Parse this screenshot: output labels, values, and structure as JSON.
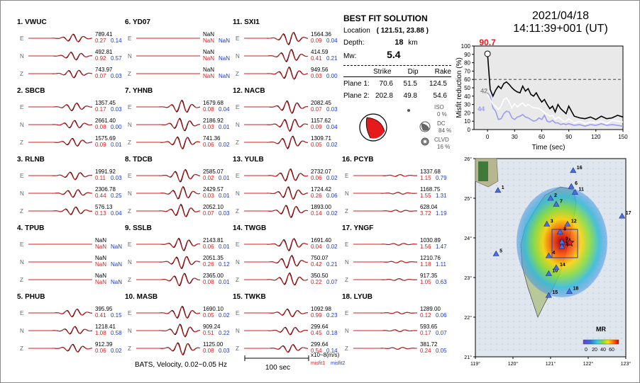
{
  "colors": {
    "data": "#000000",
    "syn": "#d62020",
    "misfit2": "#1a3acb",
    "vr_curve": "#000000",
    "vr_iso": "#ffffff",
    "vr_dc": "#9a9cf2"
  },
  "stations": [
    {
      "name": "1. VWUC",
      "comps": [
        {
          "label": "E",
          "amp": "789.41",
          "m1": "0.27",
          "m2": "0.14"
        },
        {
          "label": "N",
          "amp": "492.81",
          "m1": "0.92",
          "m2": "0.57"
        },
        {
          "label": "Z",
          "amp": "743.97",
          "m1": "0.07",
          "m2": "0.03"
        }
      ]
    },
    {
      "name": "2. SBCB",
      "comps": [
        {
          "label": "E",
          "amp": "1357.45",
          "m1": "0.17",
          "m2": "0.03"
        },
        {
          "label": "N",
          "amp": "2661.40",
          "m1": "0.08",
          "m2": "0.00"
        },
        {
          "label": "Z",
          "amp": "1575.69",
          "m1": "0.09",
          "m2": "0.01"
        }
      ]
    },
    {
      "name": "3. RLNB",
      "comps": [
        {
          "label": "E",
          "amp": "1991.92",
          "m1": "0.11",
          "m2": "0.03"
        },
        {
          "label": "N",
          "amp": "2306.78",
          "m1": "0.44",
          "m2": "0.25"
        },
        {
          "label": "Z",
          "amp": "576.13",
          "m1": "0.13",
          "m2": "0.04"
        }
      ]
    },
    {
      "name": "4. TPUB",
      "comps": [
        {
          "label": "E",
          "amp": "NaN",
          "m1": "NaN",
          "m2": "NaN"
        },
        {
          "label": "N",
          "amp": "NaN",
          "m1": "NaN",
          "m2": "NaN"
        },
        {
          "label": "Z",
          "amp": "NaN",
          "m1": "NaN",
          "m2": "NaN"
        }
      ]
    },
    {
      "name": "5. PHUB",
      "comps": [
        {
          "label": "E",
          "amp": "395.95",
          "m1": "0.41",
          "m2": "0.15"
        },
        {
          "label": "N",
          "amp": "1218.41",
          "m1": "1.08",
          "m2": "0.58"
        },
        {
          "label": "Z",
          "amp": "912.39",
          "m1": "0.06",
          "m2": "0.02"
        }
      ]
    },
    {
      "name": "6. YD07",
      "comps": [
        {
          "label": "E",
          "amp": "NaN",
          "m1": "NaN",
          "m2": "NaN"
        },
        {
          "label": "N",
          "amp": "NaN",
          "m1": "NaN",
          "m2": "NaN"
        },
        {
          "label": "Z",
          "amp": "NaN",
          "m1": "NaN",
          "m2": "NaN"
        }
      ]
    },
    {
      "name": "7. YHNB",
      "comps": [
        {
          "label": "E",
          "amp": "1679.68",
          "m1": "0.08",
          "m2": "0.04"
        },
        {
          "label": "N",
          "amp": "2186.92",
          "m1": "0.03",
          "m2": "0.01"
        },
        {
          "label": "Z",
          "amp": "741.36",
          "m1": "0.06",
          "m2": "0.02"
        }
      ]
    },
    {
      "name": "8. TDCB",
      "comps": [
        {
          "label": "E",
          "amp": "2585.07",
          "m1": "0.02",
          "m2": "0.01"
        },
        {
          "label": "N",
          "amp": "2429.57",
          "m1": "0.03",
          "m2": "0.01"
        },
        {
          "label": "Z",
          "amp": "2052.10",
          "m1": "0.07",
          "m2": "0.03"
        }
      ]
    },
    {
      "name": "9. SSLB",
      "comps": [
        {
          "label": "E",
          "amp": "2143.81",
          "m1": "0.06",
          "m2": "0.01"
        },
        {
          "label": "N",
          "amp": "2051.35",
          "m1": "0.26",
          "m2": "0.12"
        },
        {
          "label": "Z",
          "amp": "2365.00",
          "m1": "0.08",
          "m2": "0.01"
        }
      ]
    },
    {
      "name": "10. MASB",
      "comps": [
        {
          "label": "E",
          "amp": "1690.10",
          "m1": "0.05",
          "m2": "0.02"
        },
        {
          "label": "N",
          "amp": "909.24",
          "m1": "0.51",
          "m2": "0.22"
        },
        {
          "label": "Z",
          "amp": "1125.00",
          "m1": "0.08",
          "m2": "0.03"
        }
      ]
    },
    {
      "name": "11. SXI1",
      "comps": [
        {
          "label": "E",
          "amp": "1564.36",
          "m1": "0.09",
          "m2": "0.04"
        },
        {
          "label": "N",
          "amp": "414.59",
          "m1": "0.41",
          "m2": "0.21"
        },
        {
          "label": "Z",
          "amp": "949.56",
          "m1": "0.03",
          "m2": "0.00"
        }
      ]
    },
    {
      "name": "12. NACB",
      "comps": [
        {
          "label": "E",
          "amp": "2082.45",
          "m1": "0.07",
          "m2": "0.03"
        },
        {
          "label": "N",
          "amp": "1157.62",
          "m1": "0.09",
          "m2": "0.04"
        },
        {
          "label": "Z",
          "amp": "1309.71",
          "m1": "0.05",
          "m2": "0.02"
        }
      ]
    },
    {
      "name": "13. YULB",
      "comps": [
        {
          "label": "E",
          "amp": "2732.07",
          "m1": "0.06",
          "m2": "0.02"
        },
        {
          "label": "N",
          "amp": "1724.42",
          "m1": "0.26",
          "m2": "0.06"
        },
        {
          "label": "Z",
          "amp": "1893.00",
          "m1": "0.14",
          "m2": "0.02"
        }
      ]
    },
    {
      "name": "14. TWGB",
      "comps": [
        {
          "label": "E",
          "amp": "1691.40",
          "m1": "0.04",
          "m2": "0.02"
        },
        {
          "label": "N",
          "amp": "750.07",
          "m1": "0.42",
          "m2": "0.21"
        },
        {
          "label": "Z",
          "amp": "350.50",
          "m1": "0.22",
          "m2": "0.07"
        }
      ]
    },
    {
      "name": "15. TWKB",
      "comps": [
        {
          "label": "E",
          "amp": "1092.98",
          "m1": "0.99",
          "m2": "0.23"
        },
        {
          "label": "N",
          "amp": "299.64",
          "m1": "0.45",
          "m2": "0.18"
        },
        {
          "label": "Z",
          "amp": "299.64",
          "m1": "0.54",
          "m2": "0.14"
        }
      ]
    },
    {
      "name": "16. PCYB",
      "comps": [
        {
          "label": "E",
          "amp": "1337.68",
          "m1": "1.15",
          "m2": "0.79"
        },
        {
          "label": "N",
          "amp": "1168.75",
          "m1": "1.55",
          "m2": "1.31"
        },
        {
          "label": "Z",
          "amp": "628.04",
          "m1": "3.72",
          "m2": "1.19"
        }
      ]
    },
    {
      "name": "17. YNGF",
      "comps": [
        {
          "label": "E",
          "amp": "1030.89",
          "m1": "1.56",
          "m2": "1.47"
        },
        {
          "label": "N",
          "amp": "1210.76",
          "m1": "1.18",
          "m2": "1.11"
        },
        {
          "label": "Z",
          "amp": "917.35",
          "m1": "1.05",
          "m2": "0.63"
        }
      ]
    },
    {
      "name": "18. LYUB",
      "comps": [
        {
          "label": "E",
          "amp": "1289.00",
          "m1": "0.12",
          "m2": "0.06"
        },
        {
          "label": "N",
          "amp": "593.65",
          "m1": "0.17",
          "m2": "0.07"
        },
        {
          "label": "Z",
          "amp": "381.72",
          "m1": "0.24",
          "m2": "0.05"
        }
      ]
    }
  ],
  "footer": {
    "caption": "BATS, Velocity, 0.02~0.05 Hz",
    "scale_label": "100 sec",
    "units": "x10~8(m/s)",
    "misfit1": "misfit1",
    "misfit2": "misfit2"
  },
  "solution": {
    "title": "BEST FIT SOLUTION",
    "location_label": "Location",
    "location": "( 121.51,  23.88 )",
    "depth_label": "Depth:",
    "depth": "18",
    "depth_unit": "km",
    "mw_label": "Mw:",
    "mw": "5.4",
    "headers": [
      "Strike",
      "Dip",
      "Rake"
    ],
    "planes": [
      {
        "label": "Plane 1:",
        "strike": "70.6",
        "dip": "51.5",
        "rake": "124.5"
      },
      {
        "label": "Plane 2:",
        "strike": "202.8",
        "dip": "49.8",
        "rake": "54.6"
      }
    ],
    "iso_label": "ISO",
    "iso_value": "0 %",
    "dc_label": "DC",
    "dc_value": "84 %",
    "clvd_label": "CLVD",
    "clvd_value": "16 %"
  },
  "datetime": {
    "date": "2021/04/18",
    "time": "14:11:39+001  (UT)"
  },
  "chart_data": [
    {
      "type": "line",
      "title": "",
      "xlabel": "Time (sec)",
      "ylabel": "Misfit reduction (%)",
      "xlim": [
        -15,
        150
      ],
      "ylim": [
        0,
        100
      ],
      "x_ticks": [
        "0",
        "30",
        "60",
        "90",
        "120",
        "150"
      ],
      "y_ticks": [
        "0",
        "10",
        "20",
        "30",
        "40",
        "50",
        "60",
        "70",
        "80",
        "90",
        "100"
      ],
      "reference_line": 60,
      "best_time": 0,
      "best_value": 90.7,
      "best_label": "90.7",
      "iso_peak_label": "42",
      "dc_peak_label": "44",
      "x": [
        0,
        3,
        6,
        9,
        12,
        15,
        18,
        21,
        24,
        27,
        30,
        33,
        36,
        39,
        42,
        45,
        48,
        51,
        54,
        57,
        60,
        63,
        66,
        69,
        72,
        75,
        78,
        81,
        84,
        87,
        90,
        96,
        102,
        108,
        114,
        120,
        126,
        132,
        138,
        144,
        150
      ],
      "series": [
        {
          "name": "misfit reduction",
          "values": [
            90.7,
            48,
            40,
            47,
            52,
            49,
            55,
            57,
            54,
            50,
            47,
            45,
            44,
            52,
            46,
            49,
            42,
            40,
            44,
            38,
            33,
            36,
            30,
            25,
            28,
            21,
            30,
            25,
            22,
            19,
            28,
            16,
            14,
            13,
            15,
            12,
            16,
            13,
            14,
            17,
            15
          ]
        },
        {
          "name": "ISO",
          "values": [
            42,
            36,
            30,
            28,
            24,
            28,
            36,
            38,
            33,
            26,
            31,
            27,
            30,
            32,
            28,
            30,
            28,
            26,
            26,
            25,
            23,
            20,
            18,
            16,
            17,
            12,
            15,
            13,
            10,
            10,
            13,
            8,
            10,
            7,
            9,
            8,
            10,
            7,
            11,
            10,
            9
          ]
        },
        {
          "name": "DC",
          "values": [
            44,
            40,
            26,
            22,
            12,
            13,
            19,
            22,
            21,
            14,
            12,
            15,
            16,
            18,
            15,
            14,
            12,
            10,
            11,
            14,
            12,
            17,
            10,
            9,
            11,
            8,
            8,
            6,
            7,
            6,
            7,
            5,
            6,
            4,
            6,
            5,
            7,
            5,
            6,
            5,
            4
          ]
        }
      ]
    },
    {
      "type": "map",
      "title": "MR",
      "lon_ticks": [
        "119°",
        "120°",
        "121°",
        "122°",
        "123°"
      ],
      "lat_ticks": [
        "21°",
        "22°",
        "23°",
        "24°",
        "25°",
        "26°"
      ],
      "colorbar_ticks": [
        "0",
        "20",
        "40",
        "60"
      ],
      "epicenter": {
        "lon": 121.51,
        "lat": 23.88
      },
      "stations": [
        {
          "id": "1",
          "lon": 119.6,
          "lat": 25.2
        },
        {
          "id": "2",
          "lon": 121.0,
          "lat": 25.0
        },
        {
          "id": "3",
          "lon": 120.9,
          "lat": 24.35
        },
        {
          "id": "4",
          "lon": 120.95,
          "lat": 23.55
        },
        {
          "id": "5",
          "lon": 119.55,
          "lat": 23.6
        },
        {
          "id": "6",
          "lon": 121.55,
          "lat": 25.3
        },
        {
          "id": "7",
          "lon": 121.15,
          "lat": 24.85
        },
        {
          "id": "8",
          "lon": 121.25,
          "lat": 24.15
        },
        {
          "id": "9",
          "lon": 121.3,
          "lat": 23.9
        },
        {
          "id": "10",
          "lon": 120.95,
          "lat": 23.1
        },
        {
          "id": "11",
          "lon": 121.65,
          "lat": 25.15
        },
        {
          "id": "12",
          "lon": 121.45,
          "lat": 24.35
        },
        {
          "id": "13",
          "lon": 121.3,
          "lat": 23.78
        },
        {
          "id": "14",
          "lon": 121.15,
          "lat": 23.25
        },
        {
          "id": "15",
          "lon": 120.95,
          "lat": 22.55
        },
        {
          "id": "16",
          "lon": 121.6,
          "lat": 25.7
        },
        {
          "id": "17",
          "lon": 122.9,
          "lat": 24.55
        },
        {
          "id": "18",
          "lon": 121.5,
          "lat": 22.65
        }
      ]
    }
  ]
}
